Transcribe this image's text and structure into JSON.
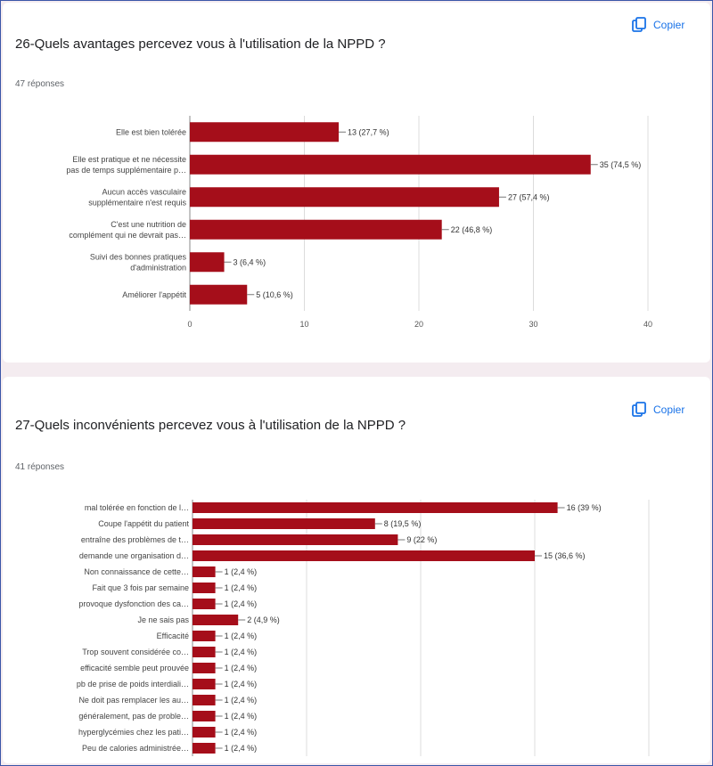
{
  "copy_label": "Copier",
  "bar_color": "#a50e1a",
  "chart_data": [
    {
      "type": "bar",
      "orientation": "horizontal",
      "title": "26-Quels avantages percevez vous à l'utilisation de la NPPD ?",
      "responses": "47 réponses",
      "categories": [
        [
          "Elle est bien tolérée"
        ],
        [
          "Elle est pratique et ne nécessite",
          "pas de temps supplémentaire p…"
        ],
        [
          "Aucun accès vasculaire",
          "supplémentaire n'est requis"
        ],
        [
          "C'est une nutrition de",
          "complément qui ne devrait pas…"
        ],
        [
          "Suivi des bonnes pratiques",
          "d'administration"
        ],
        [
          "Améliorer l'appétit"
        ]
      ],
      "values": [
        13,
        35,
        27,
        22,
        3,
        5
      ],
      "value_labels": [
        "13 (27,7 %)",
        "35 (74,5 %)",
        "27 (57,4 %)",
        "22 (46,8 %)",
        "3 (6,4 %)",
        "5 (10,6 %)"
      ],
      "xlim": [
        0,
        40
      ],
      "xticks": [
        "0",
        "10",
        "20",
        "30",
        "40"
      ],
      "grid": true
    },
    {
      "type": "bar",
      "orientation": "horizontal",
      "title": "27-Quels inconvénients percevez vous à l'utilisation de la NPPD ?",
      "responses": "41 réponses",
      "categories": [
        [
          "mal tolérée en fonction de l…"
        ],
        [
          "Coupe l'appétit du patient"
        ],
        [
          "entraîne des problèmes de t…"
        ],
        [
          "demande une organisation d…"
        ],
        [
          "Non connaissance de cette…"
        ],
        [
          "Fait que 3 fois par semaine"
        ],
        [
          "provoque dysfonction des ca…"
        ],
        [
          "Je ne sais pas"
        ],
        [
          "Efficacité"
        ],
        [
          "Trop souvent considérée co…"
        ],
        [
          "efficacité semble peut prouvée"
        ],
        [
          "pb de prise de poids interdiali…"
        ],
        [
          "Ne doit pas remplacer les au…"
        ],
        [
          "généralement, pas de proble…"
        ],
        [
          "hyperglycémies chez les pati…"
        ],
        [
          "Peu de calories administrée…"
        ]
      ],
      "values": [
        16,
        8,
        9,
        15,
        1,
        1,
        1,
        2,
        1,
        1,
        1,
        1,
        1,
        1,
        1,
        1
      ],
      "value_labels": [
        "16 (39 %)",
        "8 (19,5 %)",
        "9 (22 %)",
        "15 (36,6 %)",
        "1 (2,4 %)",
        "1 (2,4 %)",
        "1 (2,4 %)",
        "2 (4,9 %)",
        "1 (2,4 %)",
        "1 (2,4 %)",
        "1 (2,4 %)",
        "1 (2,4 %)",
        "1 (2,4 %)",
        "1 (2,4 %)",
        "1 (2,4 %)",
        "1 (2,4 %)"
      ],
      "xlim": [
        0,
        20
      ],
      "grid": true
    }
  ]
}
